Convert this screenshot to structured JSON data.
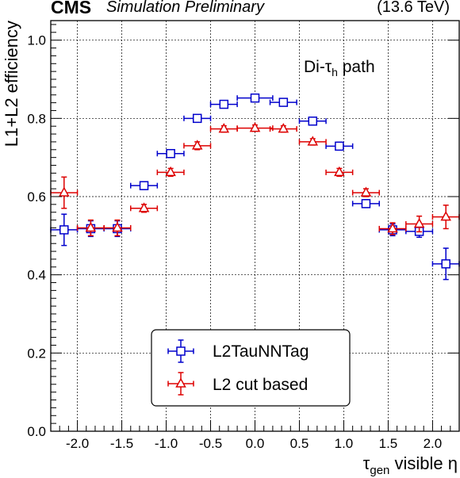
{
  "header": {
    "experiment": "CMS",
    "status": "Simulation Preliminary",
    "energy": "(13.6 TeV)"
  },
  "chart_data": {
    "type": "scatter",
    "title": "",
    "annotation": {
      "text_before": "Di-τ",
      "subscript": "h",
      "text_after": " path"
    },
    "xlabel": {
      "main": "τ",
      "subscript": "gen",
      "rest": " visible η"
    },
    "ylabel": "L1+L2 efficiency",
    "xlim": [
      -2.3,
      2.3
    ],
    "ylim": [
      0.0,
      1.05
    ],
    "xticks": [
      -2.0,
      -1.5,
      -1.0,
      -0.5,
      0.0,
      0.5,
      1.0,
      1.5,
      2.0
    ],
    "xtick_labels": [
      "-2.0",
      "-1.5",
      "-1.0",
      "-0.5",
      "0.0",
      "0.5",
      "1.0",
      "1.5",
      "2.0"
    ],
    "yticks": [
      0.0,
      0.2,
      0.4,
      0.6,
      0.8,
      1.0
    ],
    "ytick_labels": [
      "0.0",
      "0.2",
      "0.4",
      "0.6",
      "0.8",
      "1.0"
    ],
    "grid": true,
    "legend_position": "bottom-center",
    "series": [
      {
        "name": "L2TauNNTag",
        "color": "#0000cc",
        "marker": "open-square",
        "points": [
          {
            "x": -2.15,
            "xerr": 0.15,
            "y": 0.515,
            "yerr": 0.04
          },
          {
            "x": -1.85,
            "xerr": 0.15,
            "y": 0.518,
            "yerr": 0.02
          },
          {
            "x": -1.55,
            "xerr": 0.15,
            "y": 0.518,
            "yerr": 0.02
          },
          {
            "x": -1.25,
            "xerr": 0.15,
            "y": 0.628,
            "yerr": 0.01
          },
          {
            "x": -0.95,
            "xerr": 0.15,
            "y": 0.71,
            "yerr": 0.01
          },
          {
            "x": -0.65,
            "xerr": 0.15,
            "y": 0.8,
            "yerr": 0.008
          },
          {
            "x": -0.35,
            "xerr": 0.15,
            "y": 0.836,
            "yerr": 0.008
          },
          {
            "x": 0.0,
            "xerr": 0.2,
            "y": 0.852,
            "yerr": 0.008
          },
          {
            "x": 0.32,
            "xerr": 0.15,
            "y": 0.841,
            "yerr": 0.008
          },
          {
            "x": 0.65,
            "xerr": 0.15,
            "y": 0.793,
            "yerr": 0.008
          },
          {
            "x": 0.95,
            "xerr": 0.15,
            "y": 0.729,
            "yerr": 0.01
          },
          {
            "x": 1.25,
            "xerr": 0.15,
            "y": 0.582,
            "yerr": 0.01
          },
          {
            "x": 1.55,
            "xerr": 0.15,
            "y": 0.515,
            "yerr": 0.015
          },
          {
            "x": 1.85,
            "xerr": 0.15,
            "y": 0.511,
            "yerr": 0.015
          },
          {
            "x": 2.15,
            "xerr": 0.15,
            "y": 0.428,
            "yerr": 0.04
          }
        ]
      },
      {
        "name": "L2 cut based",
        "color": "#dd0000",
        "marker": "open-triangle",
        "points": [
          {
            "x": -2.15,
            "xerr": 0.15,
            "y": 0.61,
            "yerr": 0.04
          },
          {
            "x": -1.85,
            "xerr": 0.15,
            "y": 0.52,
            "yerr": 0.02
          },
          {
            "x": -1.55,
            "xerr": 0.15,
            "y": 0.52,
            "yerr": 0.02
          },
          {
            "x": -1.25,
            "xerr": 0.15,
            "y": 0.57,
            "yerr": 0.01
          },
          {
            "x": -0.95,
            "xerr": 0.15,
            "y": 0.662,
            "yerr": 0.01
          },
          {
            "x": -0.65,
            "xerr": 0.15,
            "y": 0.73,
            "yerr": 0.01
          },
          {
            "x": -0.35,
            "xerr": 0.15,
            "y": 0.773,
            "yerr": 0.008
          },
          {
            "x": 0.0,
            "xerr": 0.2,
            "y": 0.775,
            "yerr": 0.008
          },
          {
            "x": 0.32,
            "xerr": 0.15,
            "y": 0.773,
            "yerr": 0.008
          },
          {
            "x": 0.65,
            "xerr": 0.15,
            "y": 0.74,
            "yerr": 0.008
          },
          {
            "x": 0.95,
            "xerr": 0.15,
            "y": 0.662,
            "yerr": 0.01
          },
          {
            "x": 1.25,
            "xerr": 0.15,
            "y": 0.61,
            "yerr": 0.01
          },
          {
            "x": 1.55,
            "xerr": 0.15,
            "y": 0.518,
            "yerr": 0.015
          },
          {
            "x": 1.85,
            "xerr": 0.15,
            "y": 0.53,
            "yerr": 0.02
          },
          {
            "x": 2.15,
            "xerr": 0.15,
            "y": 0.548,
            "yerr": 0.03
          }
        ]
      }
    ]
  }
}
